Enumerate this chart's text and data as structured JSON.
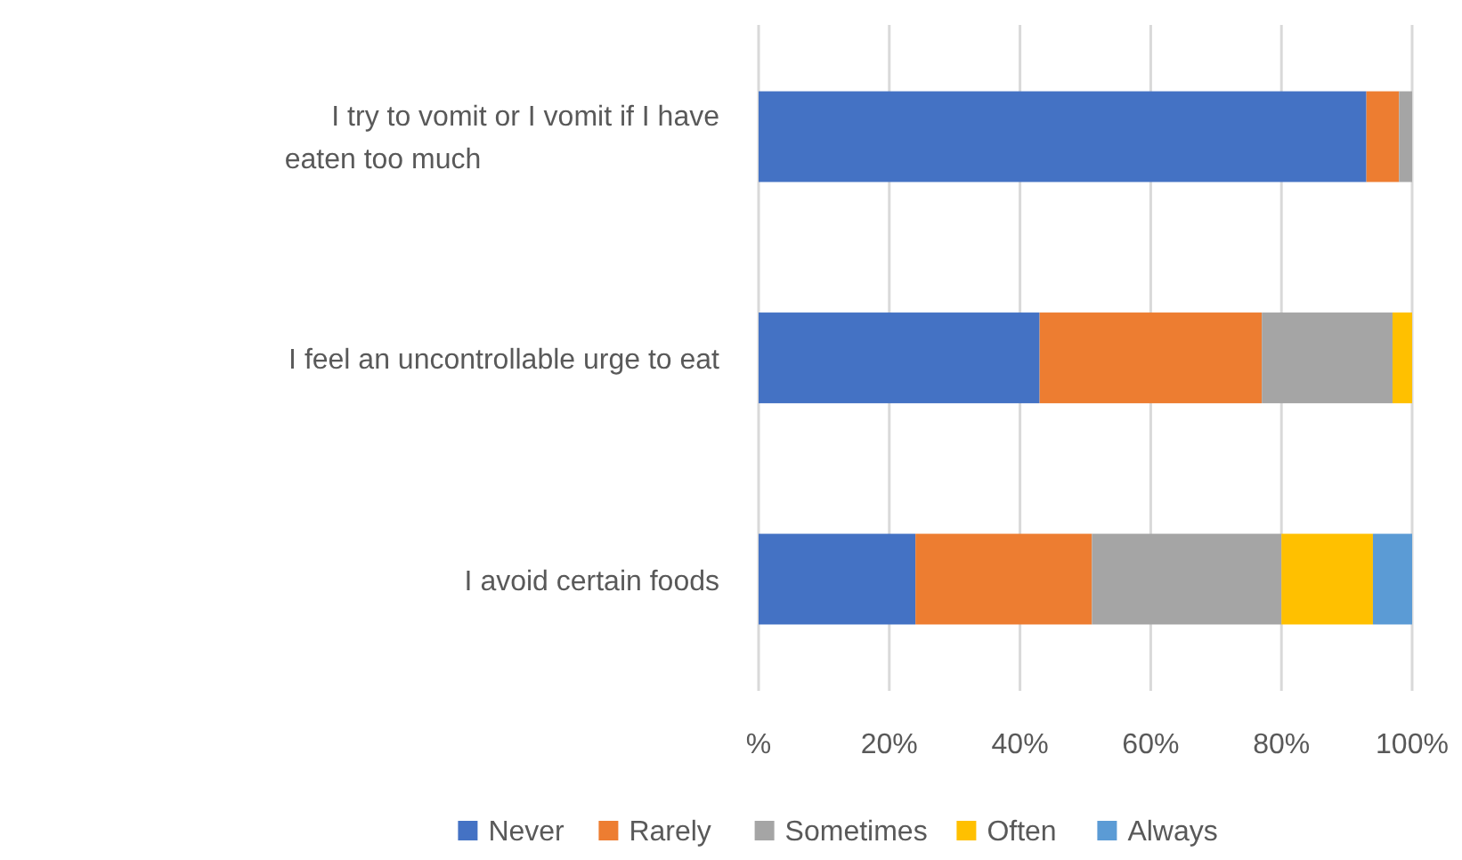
{
  "chart_data": {
    "type": "bar",
    "orientation": "horizontal",
    "stacked": true,
    "categories": [
      "I try to vomit or I vomit if I have eaten too much",
      "I feel an uncontrollable urge to eat",
      "I avoid certain foods"
    ],
    "series": [
      {
        "name": "Never",
        "color": "#4472c4",
        "values": [
          93,
          43,
          24
        ]
      },
      {
        "name": "Rarely",
        "color": "#ed7d31",
        "values": [
          5,
          34,
          27
        ]
      },
      {
        "name": "Sometimes",
        "color": "#a5a5a5",
        "values": [
          2,
          20,
          29
        ]
      },
      {
        "name": "Often",
        "color": "#ffc000",
        "values": [
          0,
          3,
          14
        ]
      },
      {
        "name": "Always",
        "color": "#5b9bd5",
        "values": [
          0,
          0,
          6
        ]
      }
    ],
    "xlim": [
      0,
      100
    ],
    "xticks": [
      {
        "value": 0,
        "label": "%"
      },
      {
        "value": 20,
        "label": "20%"
      },
      {
        "value": 40,
        "label": "40%"
      },
      {
        "value": 60,
        "label": "60%"
      },
      {
        "value": 80,
        "label": "80%"
      },
      {
        "value": 100,
        "label": "100%"
      }
    ],
    "grid": "x",
    "legend": "bottom"
  }
}
